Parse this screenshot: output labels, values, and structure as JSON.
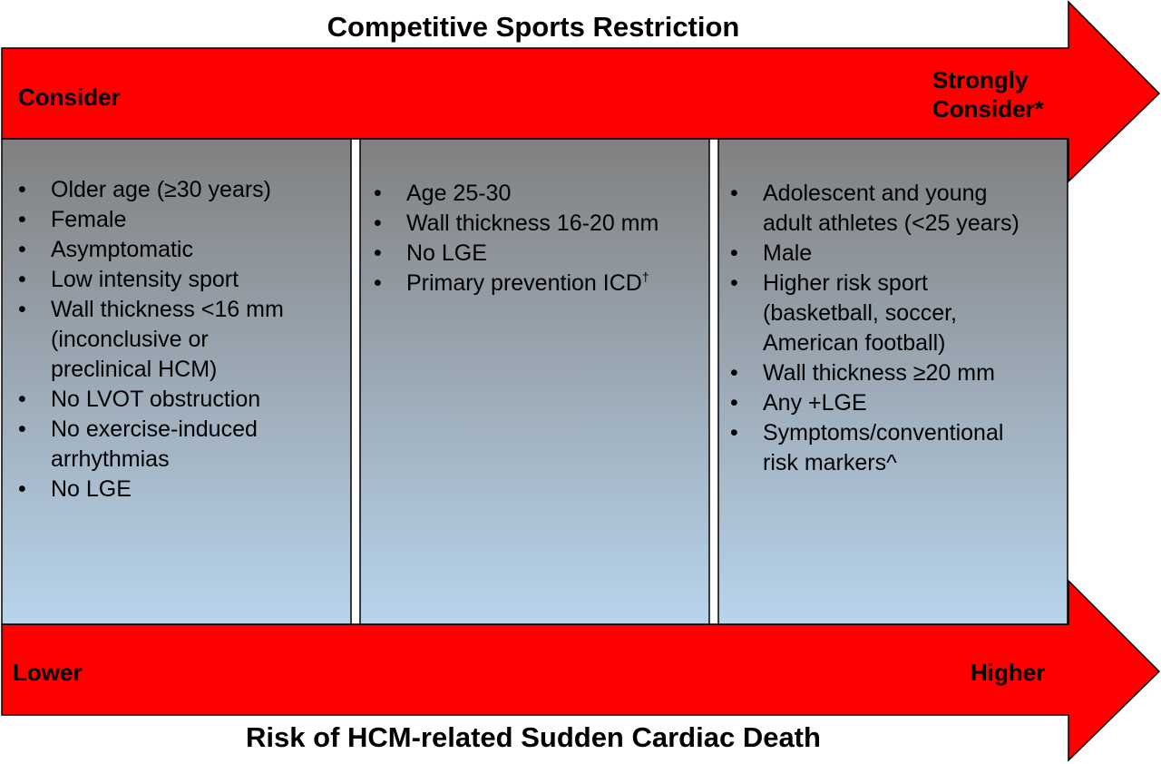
{
  "top_arrow": {
    "title": "Competitive Sports Restriction",
    "left_label": "Consider",
    "right_label": [
      "Strongly",
      "Consider*"
    ]
  },
  "columns": [
    {
      "items": [
        {
          "lines": [
            "Older age (≥30 years)"
          ]
        },
        {
          "lines": [
            "Female"
          ]
        },
        {
          "lines": [
            "Asymptomatic"
          ]
        },
        {
          "lines": [
            "Low intensity sport"
          ]
        },
        {
          "lines": [
            "Wall thickness <16 mm",
            "(inconclusive or",
            "preclinical HCM)"
          ]
        },
        {
          "lines": [
            "No LVOT obstruction"
          ]
        },
        {
          "lines": [
            "No exercise-induced",
            "arrhythmias"
          ]
        },
        {
          "lines": [
            "No LGE"
          ]
        }
      ]
    },
    {
      "items": [
        {
          "lines": [
            "Age 25-30"
          ]
        },
        {
          "lines": [
            "Wall thickness 16-20 mm"
          ]
        },
        {
          "lines": [
            "No LGE"
          ]
        },
        {
          "lines": [
            "Primary prevention ICD"
          ],
          "sup": "†"
        }
      ]
    },
    {
      "items": [
        {
          "lines": [
            "Adolescent and young",
            "adult athletes (<25 years)"
          ]
        },
        {
          "lines": [
            "Male"
          ]
        },
        {
          "lines": [
            "Higher risk sport",
            "(basketball, soccer,",
            "American football)"
          ]
        },
        {
          "lines": [
            "Wall thickness ≥20 mm"
          ]
        },
        {
          "lines": [
            "Any +LGE"
          ]
        },
        {
          "lines": [
            "Symptoms/conventional",
            "risk markers^"
          ]
        }
      ]
    }
  ],
  "bottom_arrow": {
    "title": "Risk of HCM-related Sudden Cardiac Death",
    "left_label": "Lower",
    "right_label": "Higher"
  },
  "bullet": "•"
}
